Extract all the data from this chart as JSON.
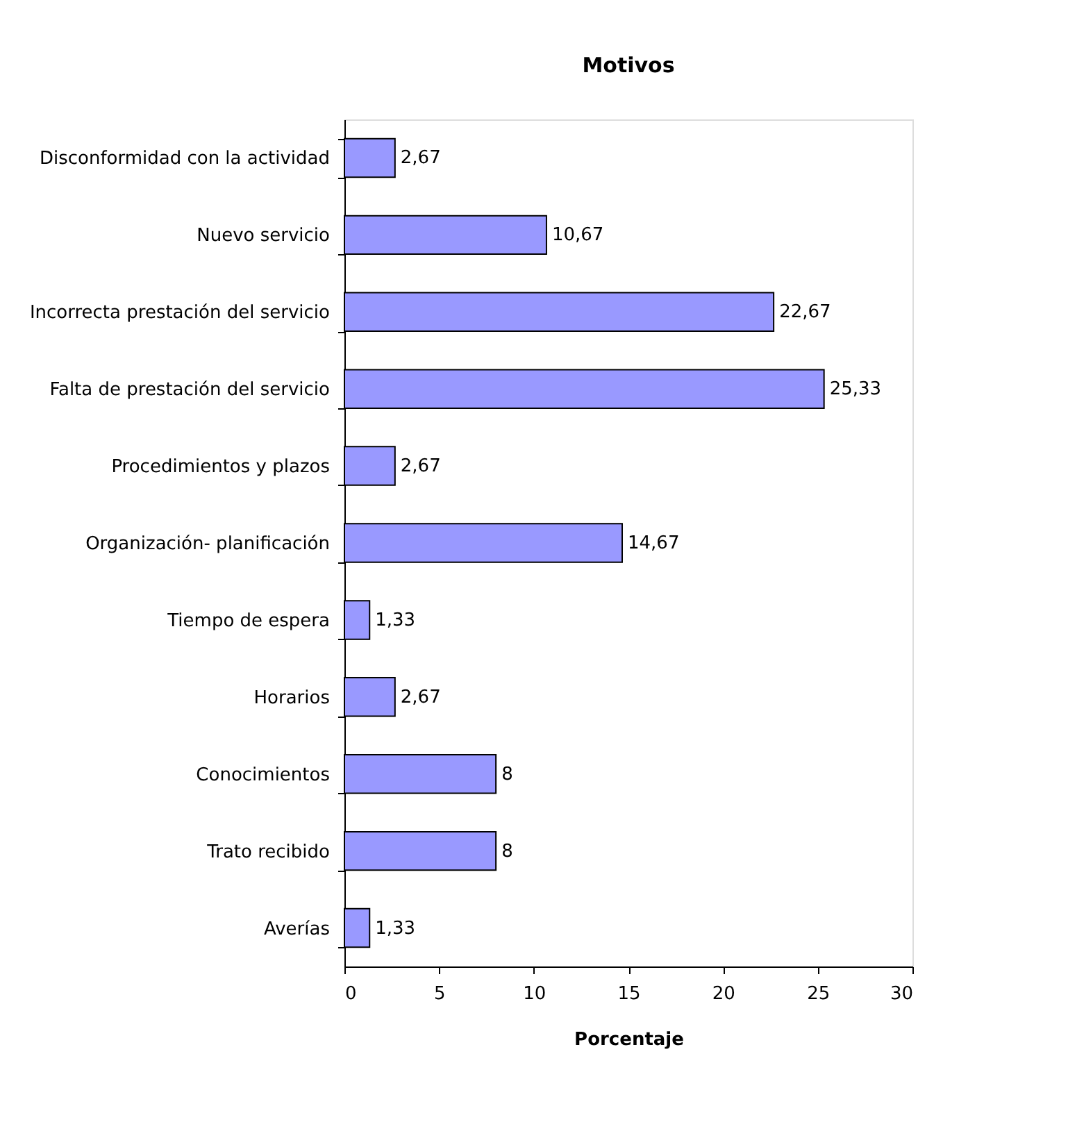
{
  "chart_data": {
    "type": "bar",
    "orientation": "horizontal",
    "title": "Motivos",
    "xlabel": "Porcentaje",
    "categories": [
      "Disconformidad con la actividad",
      "Nuevo servicio",
      "Incorrecta prestación del servicio",
      "Falta de prestación del servicio",
      "Procedimientos y plazos",
      "Organización- planificación",
      "Tiempo de espera",
      "Horarios",
      "Conocimientos",
      "Trato recibido",
      "Averías"
    ],
    "values": [
      2.67,
      10.67,
      22.67,
      25.33,
      2.67,
      14.67,
      1.33,
      2.67,
      8,
      8,
      1.33
    ],
    "value_labels": [
      "2,67",
      "10,67",
      "22,67",
      "25,33",
      "2,67",
      "14,67",
      "1,33",
      "2,67",
      "8",
      "8",
      "1,33"
    ],
    "color": "#9999ff",
    "xlim": [
      0,
      30
    ],
    "xticks": [
      0,
      5,
      10,
      15,
      20,
      25,
      30
    ],
    "grid": false
  }
}
